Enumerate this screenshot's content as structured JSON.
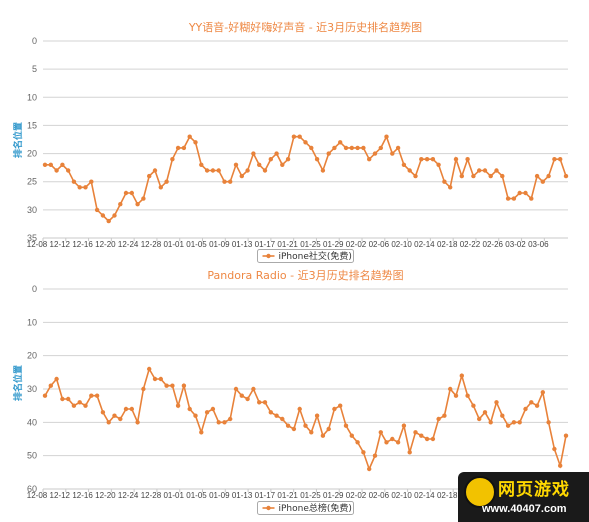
{
  "chart_data": [
    {
      "type": "line",
      "title": "YY语音-好糊好嗨好声音 - 近3月历史排名趋势图",
      "ylabel": "排名位置",
      "ylim": [
        0,
        35
      ],
      "yticks": [
        0,
        5,
        10,
        15,
        20,
        25,
        30,
        35
      ],
      "y_inverted": true,
      "grid": true,
      "x_tick_labels": [
        "12-08",
        "12-12",
        "12-16",
        "12-20",
        "12-24",
        "12-28",
        "01-01",
        "01-05",
        "01-09",
        "01-13",
        "01-17",
        "01-21",
        "01-25",
        "01-29",
        "02-02",
        "02-06",
        "02-10",
        "02-14",
        "02-18",
        "02-22",
        "02-26",
        "03-02",
        "03-06"
      ],
      "legend": "bottom-center",
      "series": [
        {
          "name": "iPhone社交(免费)",
          "color": "#e8823a",
          "values": [
            22,
            22,
            23,
            22,
            23,
            25,
            26,
            26,
            25,
            30,
            31,
            32,
            31,
            29,
            27,
            27,
            29,
            28,
            24,
            23,
            26,
            25,
            21,
            19,
            19,
            17,
            18,
            22,
            23,
            23,
            23,
            25,
            25,
            22,
            24,
            23,
            20,
            22,
            23,
            21,
            20,
            22,
            21,
            17,
            17,
            18,
            19,
            21,
            23,
            20,
            19,
            18,
            19,
            19,
            19,
            19,
            21,
            20,
            19,
            17,
            20,
            19,
            22,
            23,
            24,
            21,
            21,
            21,
            22,
            25,
            26,
            21,
            24,
            21,
            24,
            23,
            23,
            24,
            23,
            24,
            28,
            28,
            27,
            27,
            28,
            24,
            25,
            24,
            21,
            21,
            24
          ]
        }
      ]
    },
    {
      "type": "line",
      "title": "Pandora Radio - 近3月历史排名趋势图",
      "ylabel": "排名位置",
      "ylim": [
        0,
        60
      ],
      "yticks": [
        0,
        10,
        20,
        30,
        40,
        50,
        60
      ],
      "y_inverted": true,
      "grid": true,
      "x_tick_labels": [
        "12-08",
        "12-12",
        "12-16",
        "12-20",
        "12-24",
        "12-28",
        "01-01",
        "01-05",
        "01-09",
        "01-13",
        "01-17",
        "01-21",
        "01-25",
        "01-29",
        "02-02",
        "02-06",
        "02-10",
        "02-14",
        "02-18",
        "02-22",
        "02-26",
        "03-02",
        "03-06"
      ],
      "legend": "bottom-center",
      "series": [
        {
          "name": "iPhone总榜(免费)",
          "color": "#e8823a",
          "values": [
            32,
            29,
            27,
            33,
            33,
            35,
            34,
            35,
            32,
            32,
            37,
            40,
            38,
            39,
            36,
            36,
            40,
            30,
            24,
            27,
            27,
            29,
            29,
            35,
            29,
            36,
            38,
            43,
            37,
            36,
            40,
            40,
            39,
            30,
            32,
            33,
            30,
            34,
            34,
            37,
            38,
            39,
            41,
            42,
            36,
            41,
            43,
            38,
            44,
            42,
            36,
            35,
            41,
            44,
            46,
            49,
            54,
            50,
            43,
            46,
            45,
            46,
            41,
            49,
            43,
            44,
            45,
            45,
            39,
            38,
            30,
            32,
            26,
            32,
            35,
            39,
            37,
            40,
            34,
            38,
            41,
            40,
            40,
            36,
            34,
            35,
            31,
            40,
            48,
            53,
            44
          ]
        }
      ]
    }
  ],
  "watermark": {
    "title": "网页游戏",
    "url": "www.40407.com"
  }
}
